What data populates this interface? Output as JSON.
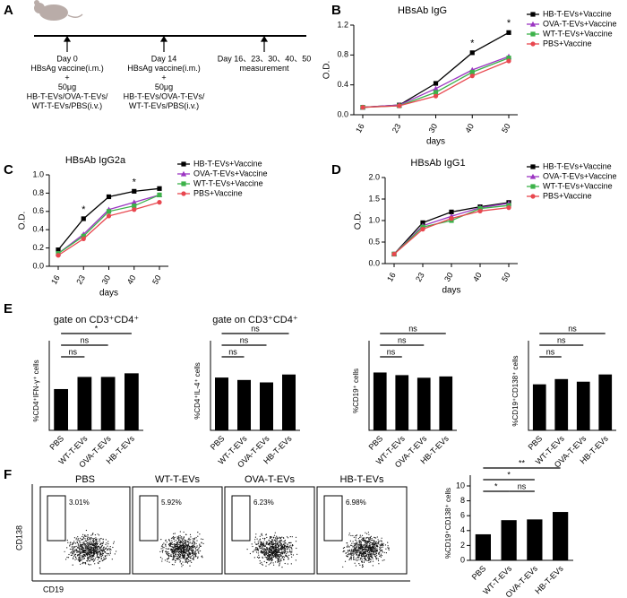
{
  "timeline": {
    "panel_label": "A",
    "events": [
      {
        "lines": [
          "Day 0",
          "HBsAg  vaccine(i.m.)",
          "+",
          "50μg",
          "HB-T-EVs/OVA-T-EVs/",
          "WT-T-EVs/PBS(i.v.)"
        ]
      },
      {
        "lines": [
          "Day 14",
          "HBsAg  vaccine(i.m.)",
          "+",
          "50μg",
          "HB-T-EVs/OVA-T-EVs/",
          "WT-T-EVs/PBS(i.v.)"
        ]
      },
      {
        "lines": [
          "Day 16、23、30、40、50",
          "measurement"
        ]
      }
    ]
  },
  "chart_data": [
    {
      "type": "line",
      "panel_label": "B",
      "title": "HBsAb IgG",
      "xlabel": "days",
      "ylabel": "O.D.",
      "categories": [
        "16",
        "23",
        "30",
        "40",
        "50"
      ],
      "ylim": [
        0,
        1.2
      ],
      "yticks": [
        {
          "value": 0,
          "label": "0.0"
        },
        {
          "value": 0.4,
          "label": "0.4"
        },
        {
          "value": 0.8,
          "label": "0.8"
        },
        {
          "value": 1.2,
          "label": "1.2"
        }
      ],
      "series": [
        {
          "name": "HB-T-EVs+Vaccine",
          "color": "#000000",
          "marker": "square",
          "values": [
            0.1,
            0.13,
            0.42,
            0.83,
            1.1
          ]
        },
        {
          "name": "OVA-T-EVs+Vaccine",
          "color": "#9b35c2",
          "marker": "triangle",
          "values": [
            0.1,
            0.13,
            0.35,
            0.6,
            0.78
          ]
        },
        {
          "name": "WT-T-EVs+Vaccine",
          "color": "#3db24a",
          "marker": "square",
          "values": [
            0.1,
            0.12,
            0.3,
            0.57,
            0.76
          ]
        },
        {
          "name": "PBS+Vaccine",
          "color": "#e8474f",
          "marker": "circle",
          "values": [
            0.1,
            0.12,
            0.25,
            0.52,
            0.72
          ]
        }
      ],
      "annotations": [
        {
          "category": "40",
          "text": "*"
        },
        {
          "category": "50",
          "text": "*"
        }
      ]
    },
    {
      "type": "line",
      "panel_label": "C",
      "title": "HBsAb IgG2a",
      "xlabel": "days",
      "ylabel": "O.D.",
      "categories": [
        "16",
        "23",
        "30",
        "40",
        "50"
      ],
      "ylim": [
        0,
        1.0
      ],
      "yticks": [
        {
          "value": 0,
          "label": "0.0"
        },
        0.2,
        0.4,
        0.6,
        0.8,
        {
          "value": 1,
          "label": "1.0"
        }
      ],
      "series": [
        {
          "name": "HB-T-EVs+Vaccine",
          "color": "#000000",
          "marker": "square",
          "values": [
            0.18,
            0.52,
            0.76,
            0.82,
            0.85
          ]
        },
        {
          "name": "OVA-T-EVs+Vaccine",
          "color": "#9b35c2",
          "marker": "triangle",
          "values": [
            0.14,
            0.35,
            0.62,
            0.7,
            0.78
          ]
        },
        {
          "name": "WT-T-EVs+Vaccine",
          "color": "#3db24a",
          "marker": "square",
          "values": [
            0.14,
            0.33,
            0.6,
            0.66,
            0.78
          ]
        },
        {
          "name": "PBS+Vaccine",
          "color": "#e8474f",
          "marker": "circle",
          "values": [
            0.12,
            0.3,
            0.55,
            0.62,
            0.7
          ]
        }
      ],
      "annotations": [
        {
          "category": "23",
          "text": "*"
        },
        {
          "category": "40",
          "text": "*"
        }
      ]
    },
    {
      "type": "line",
      "panel_label": "D",
      "title": "HBsAb IgG1",
      "xlabel": "days",
      "ylabel": "O.D.",
      "categories": [
        "16",
        "23",
        "30",
        "40",
        "50"
      ],
      "ylim": [
        0,
        2.0
      ],
      "yticks": [
        {
          "value": 0,
          "label": "0.0"
        },
        0.5,
        {
          "value": 1,
          "label": "1.0"
        },
        1.5,
        {
          "value": 2,
          "label": "2.0"
        }
      ],
      "series": [
        {
          "name": "HB-T-EVs+Vaccine",
          "color": "#000000",
          "marker": "square",
          "values": [
            0.22,
            0.95,
            1.2,
            1.32,
            1.42
          ]
        },
        {
          "name": "OVA-T-EVs+Vaccine",
          "color": "#9b35c2",
          "marker": "triangle",
          "values": [
            0.22,
            0.88,
            1.1,
            1.3,
            1.4
          ]
        },
        {
          "name": "WT-T-EVs+Vaccine",
          "color": "#3db24a",
          "marker": "square",
          "values": [
            0.22,
            0.85,
            1.0,
            1.28,
            1.35
          ]
        },
        {
          "name": "PBS+Vaccine",
          "color": "#e8474f",
          "marker": "circle",
          "values": [
            0.22,
            0.8,
            1.05,
            1.22,
            1.3
          ]
        }
      ]
    },
    {
      "type": "bar",
      "panel_label": "E",
      "title": "gate on CD3⁺CD4⁺",
      "ylabel": "%CD4⁺IFN-γ⁺ cells",
      "categories": [
        "PBS",
        "WT-T-EVs",
        "OVA-T-EVs",
        "HB-T-EVs"
      ],
      "values": [
        6.8,
        8.8,
        8.8,
        9.4
      ],
      "color": "#000000",
      "ylim": [
        0,
        13
      ],
      "comparisons": [
        {
          "groups": [
            "PBS",
            "WT-T-EVs"
          ],
          "text": "ns"
        },
        {
          "groups": [
            "PBS",
            "OVA-T-EVs"
          ],
          "text": "ns"
        },
        {
          "groups": [
            "PBS",
            "HB-T-EVs"
          ],
          "text": "*"
        }
      ]
    },
    {
      "type": "bar",
      "title": "gate on CD3⁺CD4⁺",
      "ylabel": "%CD4⁺IL-4⁺ cells",
      "categories": [
        "PBS",
        "WT-T-EVs",
        "OVA-T-EVs",
        "HB-T-EVs"
      ],
      "values": [
        8.7,
        8.3,
        7.9,
        9.2
      ],
      "color": "#000000",
      "ylim": [
        0,
        13
      ],
      "comparisons": [
        {
          "groups": [
            "PBS",
            "WT-T-EVs"
          ],
          "text": "ns"
        },
        {
          "groups": [
            "PBS",
            "OVA-T-EVs"
          ],
          "text": "ns"
        },
        {
          "groups": [
            "PBS",
            "HB-T-EVs"
          ],
          "text": "ns"
        }
      ]
    },
    {
      "type": "bar",
      "ylabel": "%CD19⁺ cells",
      "categories": [
        "PBS",
        "WT-T-EVs",
        "OVA-T-EVs",
        "HB-T-EVs"
      ],
      "values": [
        44,
        42,
        40,
        41
      ],
      "color": "#000000",
      "ylim": [
        0,
        60
      ],
      "comparisons": [
        {
          "groups": [
            "PBS",
            "WT-T-EVs"
          ],
          "text": "ns"
        },
        {
          "groups": [
            "PBS",
            "OVA-T-EVs"
          ],
          "text": "ns"
        },
        {
          "groups": [
            "PBS",
            "HB-T-EVs"
          ],
          "text": "ns"
        }
      ]
    },
    {
      "type": "bar",
      "ylabel": "%CD19⁺CD138⁺ cells",
      "categories": [
        "PBS",
        "WT-T-EVs",
        "OVA-T-EVs",
        "HB-T-EVs"
      ],
      "values": [
        0.7,
        0.78,
        0.74,
        0.85
      ],
      "color": "#000000",
      "ylim": [
        0,
        1.2
      ],
      "comparisons": [
        {
          "groups": [
            "PBS",
            "WT-T-EVs"
          ],
          "text": "ns"
        },
        {
          "groups": [
            "PBS",
            "OVA-T-EVs"
          ],
          "text": "ns"
        },
        {
          "groups": [
            "PBS",
            "HB-T-EVs"
          ],
          "text": "ns"
        }
      ]
    },
    {
      "type": "bar",
      "ylabel": "%CD19⁺CD138⁺ cells",
      "categories": [
        "PBS",
        "WT-T-EVs",
        "OVA-T-EVs",
        "HB-T-EVs"
      ],
      "values": [
        3.5,
        5.4,
        5.5,
        6.5
      ],
      "color": "#000000",
      "ylim": [
        0,
        10
      ],
      "yticks": [
        0,
        2,
        4,
        6,
        8,
        10
      ],
      "comparisons": [
        {
          "groups": [
            "PBS",
            "WT-T-EVs"
          ],
          "text": "*"
        },
        {
          "groups": [
            "WT-T-EVs",
            "OVA-T-EVs"
          ],
          "text": "ns"
        },
        {
          "groups": [
            "PBS",
            "OVA-T-EVs"
          ],
          "text": "*"
        },
        {
          "groups": [
            "PBS",
            "HB-T-EVs"
          ],
          "text": "**"
        }
      ]
    }
  ],
  "flow": {
    "panel_label": "F",
    "xlabel": "CD19",
    "ylabel": "CD138",
    "plots": [
      {
        "title": "PBS",
        "gate_percent": "3.01%"
      },
      {
        "title": "WT-T-EVs",
        "gate_percent": "5.92%"
      },
      {
        "title": "OVA-T-EVs",
        "gate_percent": "6.23%"
      },
      {
        "title": "HB-T-EVs",
        "gate_percent": "6.98%"
      }
    ]
  }
}
